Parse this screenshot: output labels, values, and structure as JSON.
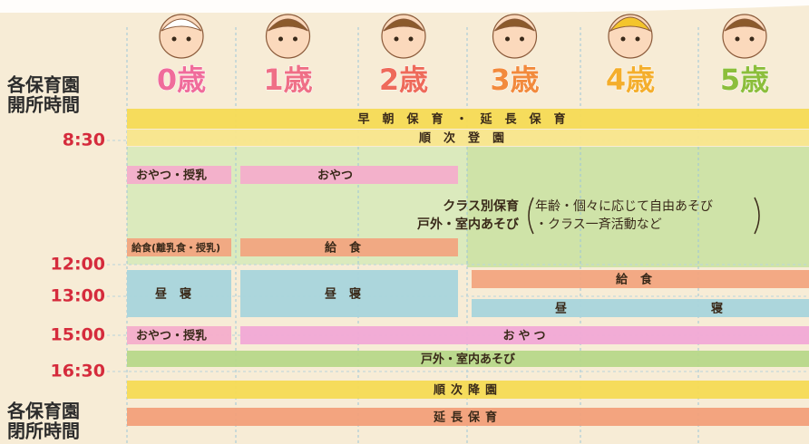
{
  "open_label": [
    "各保育園",
    "開所時間"
  ],
  "close_label": [
    "各保育園",
    "閉所時間"
  ],
  "times": [
    "8:30",
    "12:00",
    "13:00",
    "15:00",
    "16:30"
  ],
  "ages": [
    "0歳",
    "1歳",
    "2歳",
    "3歳",
    "4歳",
    "5歳"
  ],
  "blocks": [
    "早朝保育・延長保育",
    "順次登園",
    "おやつ・授乳",
    "おやつ",
    "給食(離乳食・授乳)",
    "給食",
    "給食",
    "昼寝",
    "昼寝",
    "昼寝",
    "おやつ・授乳",
    "おやつ",
    "戸外・室内あそび",
    "順次降園",
    "延長保育"
  ],
  "class_care": {
    "lines": [
      "クラス別保育",
      "戸外・室内あそび"
    ],
    "notes": [
      "年齢・個々に応じて自由あそび",
      "・クラス一斉活動など"
    ]
  }
}
